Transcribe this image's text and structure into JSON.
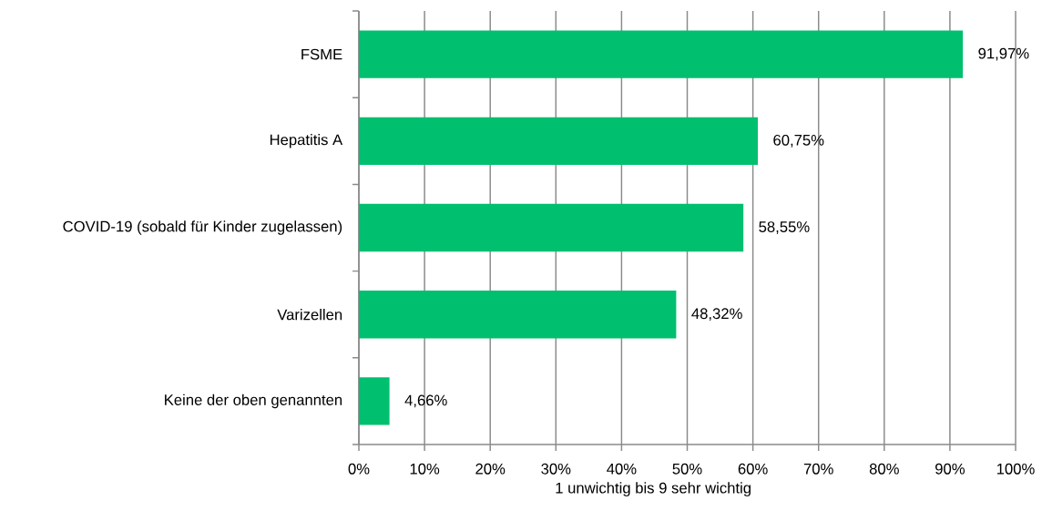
{
  "chart_data": {
    "type": "bar",
    "orientation": "horizontal",
    "categories": [
      "FSME",
      "Hepatitis A",
      "COVID-19 (sobald für Kinder zugelassen)",
      "Varizellen",
      "Keine der oben genannten"
    ],
    "values": [
      91.97,
      60.75,
      58.55,
      48.32,
      4.66
    ],
    "value_labels": [
      "91,97%",
      "60,75%",
      "58,55%",
      "48,32%",
      "4,66%"
    ],
    "color": "#00bf6f",
    "xlabel": "1 unwichtig bis 9 sehr wichtig",
    "xlim": [
      0,
      100
    ],
    "xticks": [
      {
        "value": 0,
        "label": "0%"
      },
      {
        "value": 10,
        "label": "10%"
      },
      {
        "value": 20,
        "label": "20%"
      },
      {
        "value": 30,
        "label": "30%"
      },
      {
        "value": 40,
        "label": "40%"
      },
      {
        "value": 50,
        "label": "50%"
      },
      {
        "value": 60,
        "label": "60%"
      },
      {
        "value": 70,
        "label": "70%"
      },
      {
        "value": 80,
        "label": "80%"
      },
      {
        "value": 90,
        "label": "90%"
      },
      {
        "value": 100,
        "label": "100%"
      }
    ],
    "grid": "x"
  }
}
